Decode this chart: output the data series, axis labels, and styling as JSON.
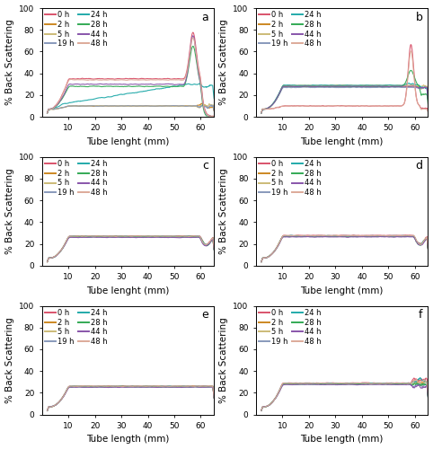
{
  "panels": [
    "a",
    "b",
    "c",
    "d",
    "e",
    "f"
  ],
  "xlim": [
    0,
    65
  ],
  "ylim": [
    0,
    100
  ],
  "xticks": [
    10,
    20,
    30,
    40,
    50,
    60
  ],
  "yticks": [
    0,
    20,
    40,
    60,
    80,
    100
  ],
  "xlabel_ab": "Tube lenght (mm)",
  "xlabel_cd": "Tube lenght (mm)",
  "xlabel_ef": "Tube length (mm)",
  "ylabel": "% Back Scattering",
  "legend_labels": [
    "0 h",
    "2 h",
    "5 h",
    "19 h",
    "24 h",
    "28 h",
    "44 h",
    "48 h"
  ],
  "colors": {
    "0h": "#d9536b",
    "2h": "#cc8822",
    "5h": "#ccbb77",
    "19h": "#8899bb",
    "24h": "#22aaaa",
    "28h": "#33aa55",
    "44h": "#8855aa",
    "48h": "#ddaa99"
  },
  "lw": 0.8,
  "legend_fontsize": 6.0,
  "tick_fontsize": 6.5,
  "label_fontsize": 7.5,
  "title_fontsize": 9,
  "figsize": [
    4.82,
    5.0
  ],
  "dpi": 100
}
